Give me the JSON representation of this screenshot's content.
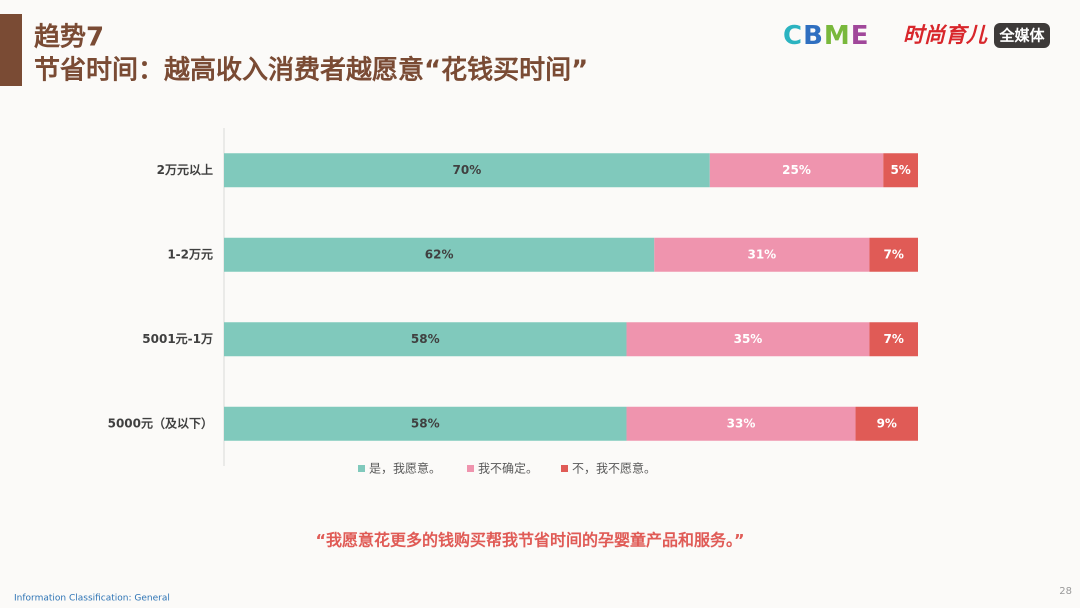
{
  "slide": {
    "trend": "趋势7",
    "title": "节省时间：越高收入消费者越愿意“花钱买时间”",
    "logo_cbme": "CBME",
    "logo_brand": "时尚育儿",
    "logo_media": "全媒体",
    "quote": "“我愿意花更多的钱购买帮我节省时间的孕婴童产品和服务。”",
    "footer": "Information Classification: General",
    "page_number": "28"
  },
  "chart_data": {
    "type": "stacked_barh",
    "categories": [
      "2万元以上",
      "1-2万元",
      "5001元-1万",
      "5000元（及以下）"
    ],
    "series": [
      {
        "name": "是，我愿意。",
        "color": "#80c9bc",
        "values": [
          70,
          62,
          58,
          58
        ],
        "value_labels": [
          "70%",
          "62%",
          "58%",
          "58%"
        ]
      },
      {
        "name": "我不确定。",
        "color": "#ef94ae",
        "values": [
          25,
          31,
          35,
          33
        ],
        "value_labels": [
          "25%",
          "31%",
          "35%",
          "33%"
        ]
      },
      {
        "name": "不，我不愿意。",
        "color": "#e05b56",
        "values": [
          5,
          7,
          7,
          9
        ],
        "value_labels": [
          "5%",
          "7%",
          "7%",
          "9%"
        ]
      }
    ],
    "xlim": [
      0,
      100
    ],
    "legend": "bottom"
  }
}
